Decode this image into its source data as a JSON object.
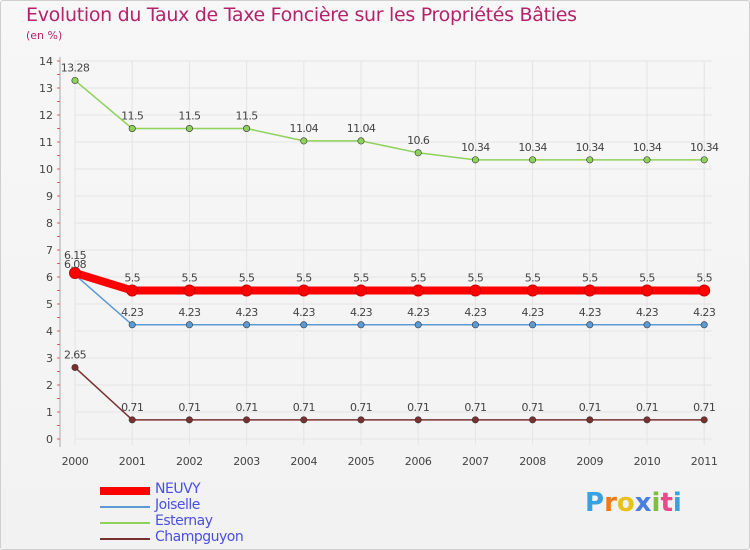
{
  "chart_data": {
    "type": "line",
    "title": "Evolution du Taux de Taxe Foncière sur les Propriétés Bâties",
    "subtitle": "(en %)",
    "xlabel": "",
    "ylabel": "",
    "categories": [
      "2000",
      "2001",
      "2002",
      "2003",
      "2004",
      "2005",
      "2006",
      "2007",
      "2008",
      "2009",
      "2010",
      "2011"
    ],
    "yticks": [
      0,
      1,
      2,
      3,
      4,
      5,
      6,
      7,
      8,
      9,
      10,
      11,
      12,
      13,
      14
    ],
    "ylim": [
      0,
      14
    ],
    "grid": true,
    "legend_position": "bottom-left",
    "series": [
      {
        "name": "NEUVY",
        "color": "#ff0000",
        "values": [
          6.15,
          5.5,
          5.5,
          5.5,
          5.5,
          5.5,
          5.5,
          5.5,
          5.5,
          5.5,
          5.5,
          5.5
        ],
        "labels": [
          "6.15",
          "5.5",
          "5.5",
          "5.5",
          "5.5",
          "5.5",
          "5.5",
          "5.5",
          "5.5",
          "5.5",
          "5.5",
          "5.5"
        ]
      },
      {
        "name": "Joiselle",
        "color": "#5b9bd5",
        "values": [
          6.08,
          4.23,
          4.23,
          4.23,
          4.23,
          4.23,
          4.23,
          4.23,
          4.23,
          4.23,
          4.23,
          4.23
        ],
        "labels": [
          "6.08",
          "4.23",
          "4.23",
          "4.23",
          "4.23",
          "4.23",
          "4.23",
          "4.23",
          "4.23",
          "4.23",
          "4.23",
          "4.23"
        ]
      },
      {
        "name": "Esternay",
        "color": "#8ed15b",
        "values": [
          13.28,
          11.5,
          11.5,
          11.5,
          11.04,
          11.04,
          10.6,
          10.34,
          10.34,
          10.34,
          10.34,
          10.34
        ],
        "labels": [
          "13.28",
          "11.5",
          "11.5",
          "11.5",
          "11.04",
          "11.04",
          "10.6",
          "10.34",
          "10.34",
          "10.34",
          "10.34",
          "10.34"
        ]
      },
      {
        "name": "Champguyon",
        "color": "#7b3030",
        "values": [
          2.65,
          0.71,
          0.71,
          0.71,
          0.71,
          0.71,
          0.71,
          0.71,
          0.71,
          0.71,
          0.71,
          0.71
        ],
        "labels": [
          "2.65",
          "0.71",
          "0.71",
          "0.71",
          "0.71",
          "0.71",
          "0.71",
          "0.71",
          "0.71",
          "0.71",
          "0.71",
          "0.71"
        ]
      }
    ]
  },
  "logo": {
    "text": "Proxiti",
    "colors": [
      "#3aa0e0",
      "#f07a1a",
      "#e8c21a",
      "#4a7fe0",
      "#7ac142",
      "#e84a8a",
      "#3aa0e0"
    ]
  }
}
